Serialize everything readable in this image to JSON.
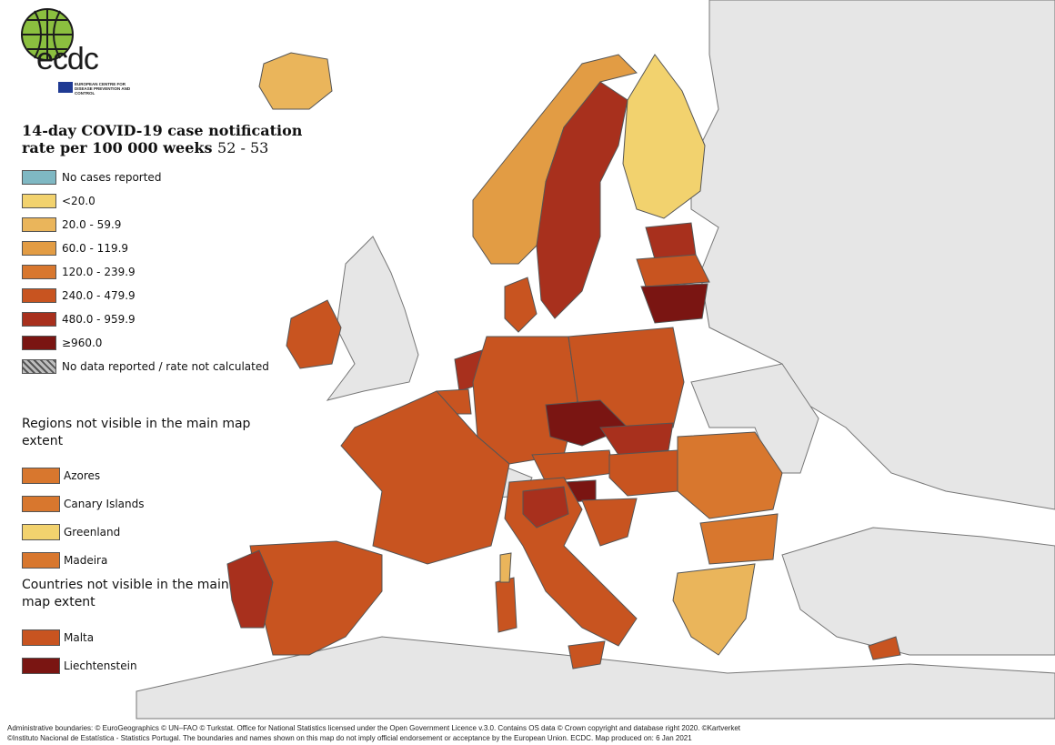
{
  "logo": {
    "wordmark": "ecdc",
    "subtitle": "EUROPEAN CENTRE FOR DISEASE PREVENTION AND CONTROL"
  },
  "title": {
    "main": "14-day COVID-19 case notification rate per 100 000 weeks",
    "weeks": "52 - 53"
  },
  "legend": [
    {
      "label": "No cases reported",
      "color": "#7fb8c3",
      "hatched": false
    },
    {
      "label": "<20.0",
      "color": "#f2d26e",
      "hatched": false
    },
    {
      "label": "20.0 - 59.9",
      "color": "#eab55b",
      "hatched": false
    },
    {
      "label": "60.0 - 119.9",
      "color": "#e29c44",
      "hatched": false
    },
    {
      "label": "120.0 - 239.9",
      "color": "#d8772e",
      "hatched": false
    },
    {
      "label": "240.0 - 479.9",
      "color": "#c85420",
      "hatched": false
    },
    {
      "label": "480.0 - 959.9",
      "color": "#a8301d",
      "hatched": false
    },
    {
      "label": "≥960.0",
      "color": "#7a1512",
      "hatched": false
    },
    {
      "label": "No data reported / rate not calculated",
      "color": "#bdbdbd",
      "hatched": true
    }
  ],
  "regions_heading": "Regions not visible in the main map extent",
  "regions": [
    {
      "label": "Azores",
      "color": "#d8772e"
    },
    {
      "label": "Canary Islands",
      "color": "#d8772e"
    },
    {
      "label": "Greenland",
      "color": "#f2d26e"
    },
    {
      "label": "Madeira",
      "color": "#d8772e"
    }
  ],
  "countries_heading": "Countries not visible in the main map extent",
  "countries": [
    {
      "label": "Malta",
      "color": "#c85420"
    },
    {
      "label": "Liechtenstein",
      "color": "#7a1512"
    }
  ],
  "credits": {
    "line1": "Administrative boundaries: © EuroGeographics © UN–FAO © Turkstat. Office for National Statistics licensed under the Open Government Licence v.3.0. Contains OS data © Crown copyright and database right 2020. ©Kartverket",
    "line2": "©Instituto Nacional de Estatística - Statistics Portugal. The boundaries and names shown on this map do not imply official endorsement or acceptance by the European Union. ECDC. Map produced on: 6 Jan 2021"
  },
  "colors": {
    "sea": "#ffffff",
    "non_eu_land": "#e6e6e6",
    "border": "#555555"
  }
}
